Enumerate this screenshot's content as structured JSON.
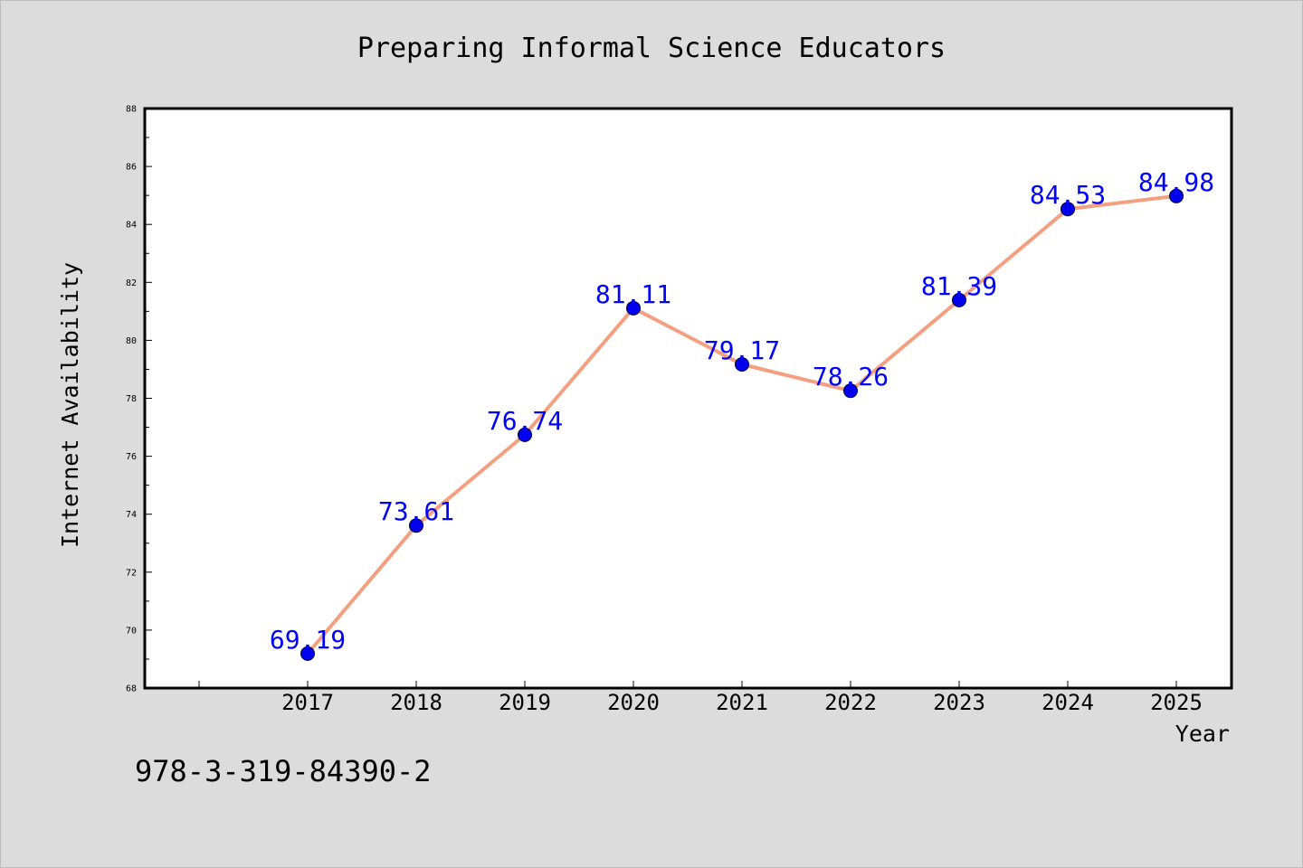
{
  "chart_data": {
    "type": "line",
    "title": "Preparing Informal Science Educators",
    "xlabel": "Year",
    "ylabel": "Internet Availability",
    "categories": [
      "2017",
      "2018",
      "2019",
      "2020",
      "2021",
      "2022",
      "2023",
      "2024",
      "2025"
    ],
    "values": [
      69.19,
      73.61,
      76.74,
      81.11,
      79.17,
      78.26,
      81.39,
      84.53,
      84.98
    ],
    "value_labels": [
      "69.19",
      "73.61",
      "76.74",
      "81.11",
      "79.17",
      "78.26",
      "81.39",
      "84.53",
      "84.98"
    ],
    "ylim": [
      68,
      88
    ],
    "yticks": [
      "68",
      "70",
      "72",
      "74",
      "76",
      "78",
      "80",
      "82",
      "84",
      "86",
      "88"
    ],
    "grid": false,
    "line_color": "#f4a080",
    "marker_color": "#0000ee",
    "label_color": "#0000ff",
    "annotation": "978-3-319-84390-2"
  }
}
